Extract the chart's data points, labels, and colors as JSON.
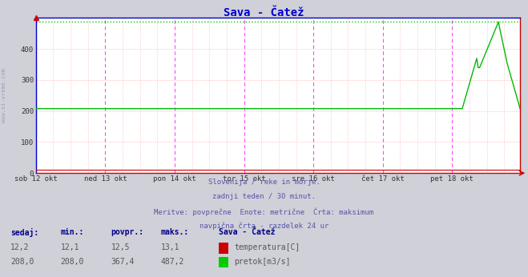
{
  "title": "Sava - Čatež",
  "title_color": "#0000cc",
  "bg_color": "#d0d0d8",
  "plot_bg_color": "#ffffff",
  "grid_color_h": "#ffaaaa",
  "grid_color_v_major": "#ff44ff",
  "grid_color_v_minor": "#ffaaaa",
  "max_line_color": "#00cc00",
  "border_color": "#cc0000",
  "x_labels": [
    "sob 12 okt",
    "ned 13 okt",
    "pon 14 okt",
    "tor 15 okt",
    "sre 16 okt",
    "čet 17 okt",
    "pet 18 okt"
  ],
  "y_ticks": [
    0,
    100,
    200,
    300,
    400
  ],
  "ylim": [
    0,
    500
  ],
  "ylabel_text": "www.si-vreme.com",
  "subtitle_lines": [
    "Slovenija / reke in morje.",
    "zadnji teden / 30 minut.",
    "Meritve: povprečne  Enote: metrične  Črta: maksimum",
    "navpična črta - razdelek 24 ur"
  ],
  "subtitle_color": "#5555aa",
  "legend_title": "Sava - Čatež",
  "legend_title_color": "#000088",
  "legend_items": [
    {
      "label": "temperatura[C]",
      "color": "#cc0000"
    },
    {
      "label": "pretok[m3/s]",
      "color": "#00cc00"
    }
  ],
  "stats_headers": [
    "sedaj:",
    "min.:",
    "povpr.:",
    "maks.:"
  ],
  "stats_row1": [
    "12,2",
    "12,1",
    "12,5",
    "13,1"
  ],
  "stats_row2": [
    "208,0",
    "208,0",
    "367,4",
    "487,2"
  ],
  "stats_color": "#000088",
  "stats_value_color": "#555555",
  "flow_max": 487.2,
  "flow_baseline": 208.0,
  "num_points": 336,
  "temp_val": 12.2,
  "arrow_color": "#cc0000"
}
